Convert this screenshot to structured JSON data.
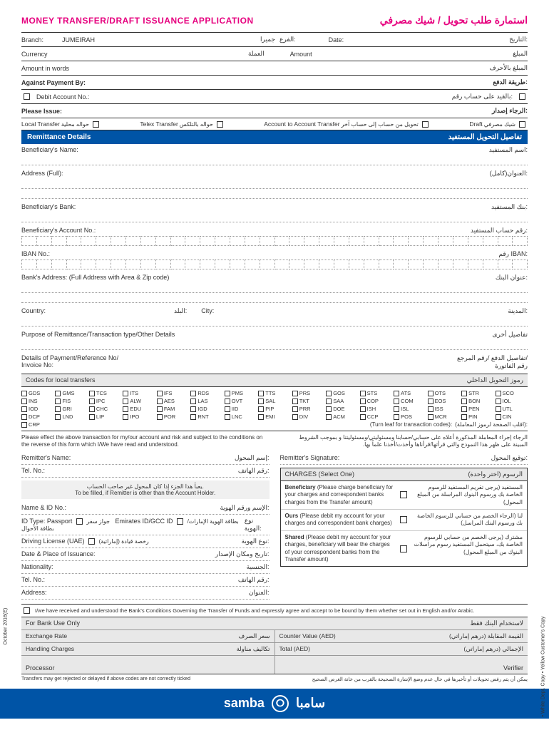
{
  "title": {
    "en": "MONEY TRANSFER/DRAFT ISSUANCE APPLICATION",
    "ar": "استمارة طلب تحويل / شيك مصرفي"
  },
  "top": {
    "branch_en": "Branch:",
    "branch_val": "JUMEIRAH",
    "branch_ar": "الفرع:",
    "branch_ar_val": "جميرا",
    "date_en": "Date:",
    "date_ar": "التاريخ:",
    "currency_en": "Currency",
    "currency_ar": "العملة",
    "amount_en": "Amount",
    "amount_ar": "المبلغ",
    "words_en": "Amount in words",
    "words_ar": "المبلغ بالأحرف",
    "against_en": "Against Payment By:",
    "against_ar": "طريقة الدفع:",
    "debit_en": "Debit Account No.:",
    "debit_ar": "بالقيد على حساب رقم:",
    "issue_en": "Please Issue:",
    "issue_ar": "الرجاء إصدار:"
  },
  "issue_opts": [
    {
      "en": "Local Transfer",
      "ar": "حواله محلية"
    },
    {
      "en": "Telex Transfer",
      "ar": "حواله بالتلكس"
    },
    {
      "en": "Account to Account Transfer",
      "ar": "تحويل من حساب إلى حساب آخر"
    },
    {
      "en": "Draft",
      "ar": "شيك مصرفي"
    }
  ],
  "section": {
    "en": "Remittance Details",
    "ar": "تفاصيل التحويل المستفيد"
  },
  "remit": [
    {
      "en": "Beneficiary's Name:",
      "ar": "اسم المستفيد:",
      "cells": 0
    },
    {
      "en": "Address (Full):",
      "ar": "العنوان(كامل):",
      "cells": 0,
      "double": true
    },
    {
      "en": "Beneficiary's Bank:",
      "ar": "بنك المستفيد:",
      "cells": 0
    },
    {
      "en": "Beneficiary's Account No.:",
      "ar": "رقم حساب المستفيد:",
      "cells": 34
    },
    {
      "en": "IBAN No.:",
      "ar": "رقم IBAN:",
      "cells": 34
    },
    {
      "en": "Bank's Address: (Full Address with Area & Zip code)",
      "ar": "عنوان البنك:",
      "cells": 0,
      "double": true
    }
  ],
  "country": {
    "en": "Country:",
    "mid_ar": "البلد:",
    "city_en": "City:",
    "ar": "المدينة:"
  },
  "purpose": {
    "en": "Purpose of Remittance/Transaction type/Other Details",
    "ar": "تفاصيل أخرى"
  },
  "details": {
    "en1": "Details of Payment/Reference No/",
    "en2": "Invoice No:",
    "ar1": "تفاصيل الدفع /رقم المرجع/",
    "ar2": "رقم الفاتورة"
  },
  "codes_header": {
    "en": "Codes for local transfers",
    "ar": "رموز التحويل الداخلي"
  },
  "codes": [
    "GDS",
    "GMS",
    "TCS",
    "ITS",
    "IFS",
    "RDS",
    "PMS",
    "TTS",
    "PRS",
    "GOS",
    "STS",
    "ATS",
    "OTS",
    "STR",
    "SCO",
    "INS",
    "FIS",
    "IPC",
    "ALW",
    "AES",
    "LAS",
    "OVT",
    "SAL",
    "TKT",
    "SAA",
    "COP",
    "COM",
    "EOS",
    "BON",
    "IOL",
    "IOD",
    "GRI",
    "CHC",
    "EDU",
    "FAM",
    "IGD",
    "IID",
    "PIP",
    "PRR",
    "DOE",
    "ISH",
    "ISL",
    "ISS",
    "PEN",
    "UTL",
    "DCP",
    "LND",
    "LIP",
    "IPO",
    "POR",
    "RNT",
    "LNC",
    "EMI",
    "DIV",
    "ACM",
    "CCP",
    "POS",
    "MCR",
    "PIN",
    "CIN",
    "CRP"
  ],
  "turn_leaf": {
    "en": "(Turn leaf for transaction codes):",
    "ar": "(اقلب الصفحة لرموز المعاملة):"
  },
  "declare": {
    "en": "Please effect the above transaction for my/our account and risk and subject to the conditions on the reverse of this form which I/We have read and understood.",
    "ar": "الرجاء إجراء المعاملة المذكورة أعلاه على حسابي/حسابنا ومسئوليتي/ومسئوليتنا و بموجب الشروط المبينة على ظهر هذا النموذج والتي قرأتها/قرأناها وأخذت/أخذنا علماً بها."
  },
  "remitter": {
    "name_en": "Remitter's Name:",
    "name_ar": "إسم المحول:",
    "tel_en": "Tel. No.:",
    "tel_ar": "رقم الهاتف:",
    "sig_en": "Remitter's Signature:",
    "sig_ar": "توقيع المحول:"
  },
  "gray_note": {
    "ar": "يعبأ هذا الجزء إذا كان المحول غير صاحب الحساب.",
    "en": "To be filled, if Remitter is other than the Account Holder."
  },
  "other": [
    {
      "en": "Name & ID No.:",
      "ar": "الإسم ورقم الهوية:"
    },
    {
      "en_lead": "ID Type:",
      "items": [
        {
          "en": "Passport",
          "ar": "جواز سفر"
        },
        {
          "en": "Emirates ID/GCC ID",
          "ar": "بطاقة الهوية الإمارات/بطاقة الأحوال"
        }
      ],
      "ar": "نوع الهوية:"
    },
    {
      "items2": [
        {
          "en": "Driving License (UAE)",
          "ar": "رخصة قيادة (إماراتية)"
        }
      ],
      "ar": "نوع الهوية:"
    },
    {
      "en": "Date & Place of Issuance:",
      "ar": "تاريخ ومكان الإصدار:"
    },
    {
      "en": "Nationality:",
      "ar": "الجنسية:"
    },
    {
      "en": "Tel. No.:",
      "ar": "رقم الهاتف:"
    },
    {
      "en": "Address:",
      "ar": "العنوان:"
    }
  ],
  "charges": {
    "header_en": "CHARGES (Select One)",
    "header_ar": "الرسوم (اختر واحدة)",
    "opts": [
      {
        "title": "Beneficiary",
        "en": "(Please charge beneficiary for your charges and correspondent banks charges from the Transfer amount)",
        "ar": "المستفيد (يرجى تقريم المستفيد للرسوم الخاصة بك ورسوم البنوك المراسلة من المبلغ المحول)"
      },
      {
        "title": "Ours",
        "en": "(Please debit my account for your charges and correspondent bank charges)",
        "ar": "لنا (الرجاء الخصم من حسابي للرسوم الخاصة بك ورسوم البنك المراسل)"
      },
      {
        "title": "Shared",
        "en": "(Please debit my account for your charges, beneficiary will bear the charges of your correspondent banks from the Transfer amount)",
        "ar": "مشترك (يرجى الخصم من حسابي للرسوم الخاصة بك، سيتحمل المستفيد رسوم مراسلات البنوك من المبلغ المحول)"
      }
    ]
  },
  "disclaimer": "I/we have received and understood the Bank's Conditions Governing the Transfer of Funds and expressly agree and accept to be bound by them whether set out in English and/or Arabic.",
  "bank_use": {
    "header_en": "For Bank Use Only",
    "header_ar": "لاستخدام البنك فقط",
    "rows": [
      {
        "l_en": "Exchange Rate",
        "l_ar": "سعر الصرف",
        "r_en": "Counter Value (AED)",
        "r_ar": "القيمة المقابلة (درهم إماراتي)"
      },
      {
        "l_en": "Handling Charges",
        "l_ar": "تكاليف مناولة",
        "r_en": "Total (AED)",
        "r_ar": "الإجمالي (درهم إماراتي)"
      }
    ],
    "processor": "Processor",
    "verifier": "Verifier"
  },
  "footnote": {
    "en": "Transfers may get rejected or delayed if above codes are not correctly ticked",
    "ar": "يمكن أن يتم رفض تحويلات أو تأخيرها في حال عدم وضع الإشارة الصحيحة بالقرب من خانة الغرض الصحيح"
  },
  "side": {
    "left": "October 2016(E)",
    "right": "• White Dept. Copy    • Yellow Customer's Copy"
  },
  "logo": {
    "en": "samba",
    "ar": "سامبا"
  }
}
